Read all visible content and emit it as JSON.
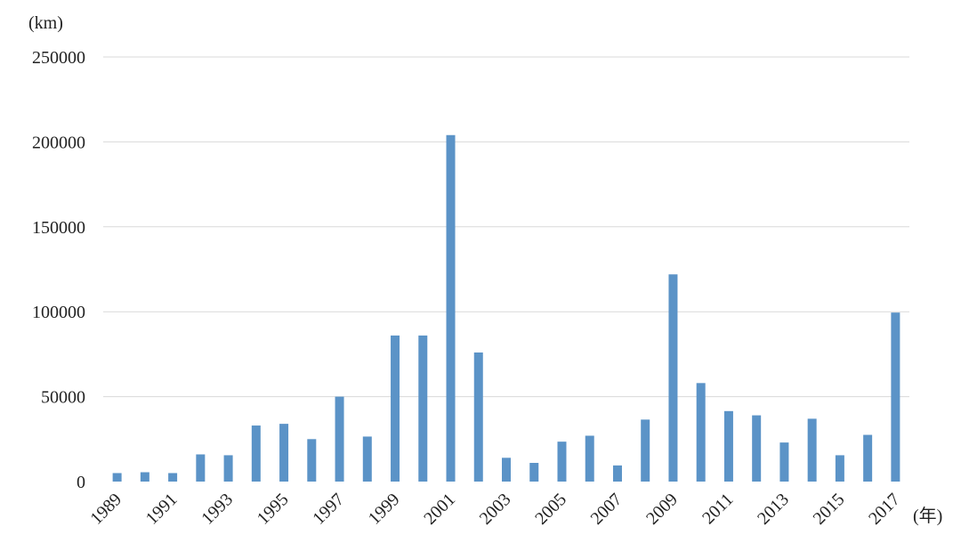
{
  "chart_data": {
    "type": "bar",
    "ylabel": "(km)",
    "xlabel": "(年)",
    "ylim": [
      0,
      250000
    ],
    "yticks": [
      0,
      50000,
      100000,
      150000,
      200000,
      250000
    ],
    "grid": true,
    "bar_color": "#5b93c7",
    "grid_color": "#d9d9d9",
    "categories": [
      "1989",
      "1990",
      "1991",
      "1992",
      "1993",
      "1994",
      "1995",
      "1996",
      "1997",
      "1998",
      "1999",
      "2000",
      "2001",
      "2002",
      "2003",
      "2004",
      "2005",
      "2006",
      "2007",
      "2008",
      "2009",
      "2010",
      "2011",
      "2012",
      "2013",
      "2014",
      "2015",
      "2016",
      "2017"
    ],
    "tick_labels_shown": [
      "1989",
      "1991",
      "1993",
      "1995",
      "1997",
      "1999",
      "2001",
      "2003",
      "2005",
      "2007",
      "2009",
      "2011",
      "2013",
      "2015",
      "2017"
    ],
    "values": [
      5000,
      5500,
      5000,
      16000,
      15500,
      33000,
      34000,
      25000,
      50000,
      26500,
      86000,
      86000,
      204000,
      76000,
      14000,
      11000,
      23500,
      27000,
      9500,
      36500,
      122000,
      58000,
      41500,
      39000,
      23000,
      37000,
      15500,
      27500,
      99500
    ]
  }
}
